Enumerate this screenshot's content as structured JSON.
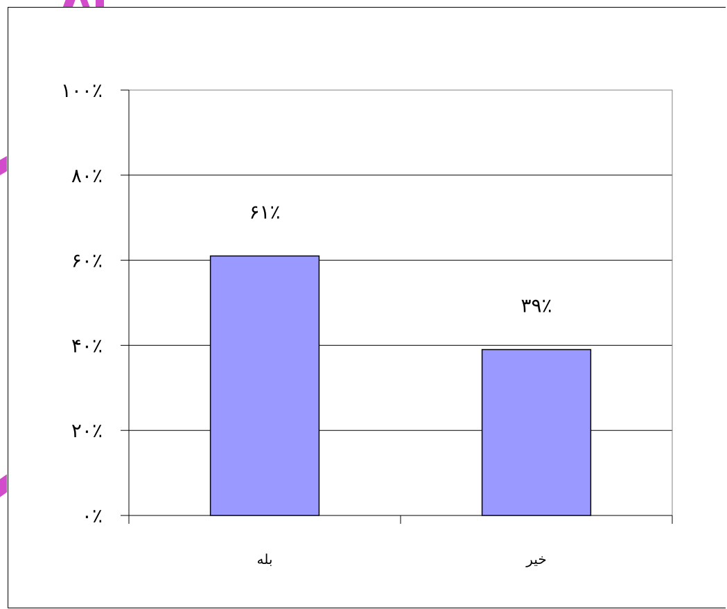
{
  "chart_data": {
    "type": "bar",
    "categories": [
      "بله",
      "خیر"
    ],
    "values": [
      61,
      39
    ],
    "value_labels": [
      "۶۱٪",
      "۳۹٪"
    ],
    "y_ticks": [
      0,
      20,
      40,
      60,
      80,
      100
    ],
    "y_tick_labels": [
      "۰٪",
      "۲۰٪",
      "۴۰٪",
      "۶۰٪",
      "۸۰٪",
      "۱۰۰٪"
    ],
    "ylim": [
      0,
      100
    ],
    "grid": true,
    "legend": "none",
    "bar_color": "#9999ff",
    "bar_border_color": "#000000",
    "plot_border_color": "#808080"
  }
}
